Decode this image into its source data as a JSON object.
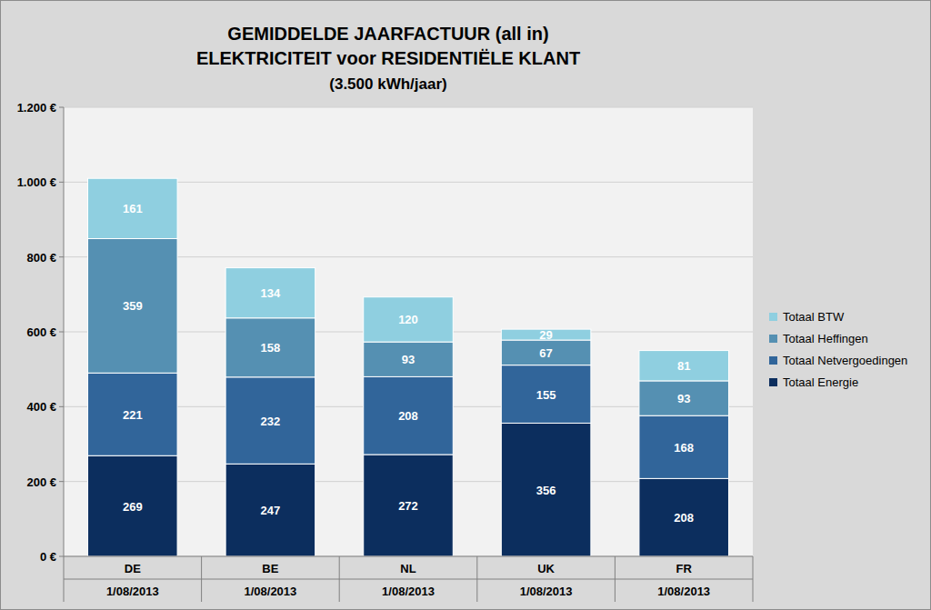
{
  "chart_data": {
    "type": "bar",
    "stacked": true,
    "data_labels": true,
    "grid": true,
    "legend": "right",
    "title": [
      "GEMIDDELDE JAARFACTUUR (all in)",
      "ELEKTRICITEIT voor RESIDENTIËLE KLANT"
    ],
    "subtitle": "(3.500 kWh/jaar)",
    "categories": [
      "DE",
      "BE",
      "NL",
      "UK",
      "FR"
    ],
    "category_dates": [
      "1/08/2013",
      "1/08/2013",
      "1/08/2013",
      "1/08/2013",
      "1/08/2013"
    ],
    "ylim": [
      0,
      1200
    ],
    "yticks": [
      {
        "value": 0,
        "label": "0 €"
      },
      {
        "value": 200,
        "label": "200 €"
      },
      {
        "value": 400,
        "label": "400 €"
      },
      {
        "value": 600,
        "label": "600 €"
      },
      {
        "value": 800,
        "label": "800 €"
      },
      {
        "value": 1000,
        "label": "1.000 €"
      },
      {
        "value": 1200,
        "label": "1.200 €"
      }
    ],
    "series": [
      {
        "name": "Totaal Energie",
        "color": "#0c2e5e",
        "values": [
          269,
          247,
          272,
          356,
          208
        ]
      },
      {
        "name": "Totaal Netvergoedingen",
        "color": "#31659a",
        "values": [
          221,
          232,
          208,
          155,
          168
        ]
      },
      {
        "name": "Totaal Heffingen",
        "color": "#5590b2",
        "values": [
          359,
          158,
          93,
          67,
          93
        ]
      },
      {
        "name": "Totaal BTW",
        "color": "#8fcfe0",
        "values": [
          161,
          134,
          120,
          29,
          81
        ]
      }
    ]
  }
}
